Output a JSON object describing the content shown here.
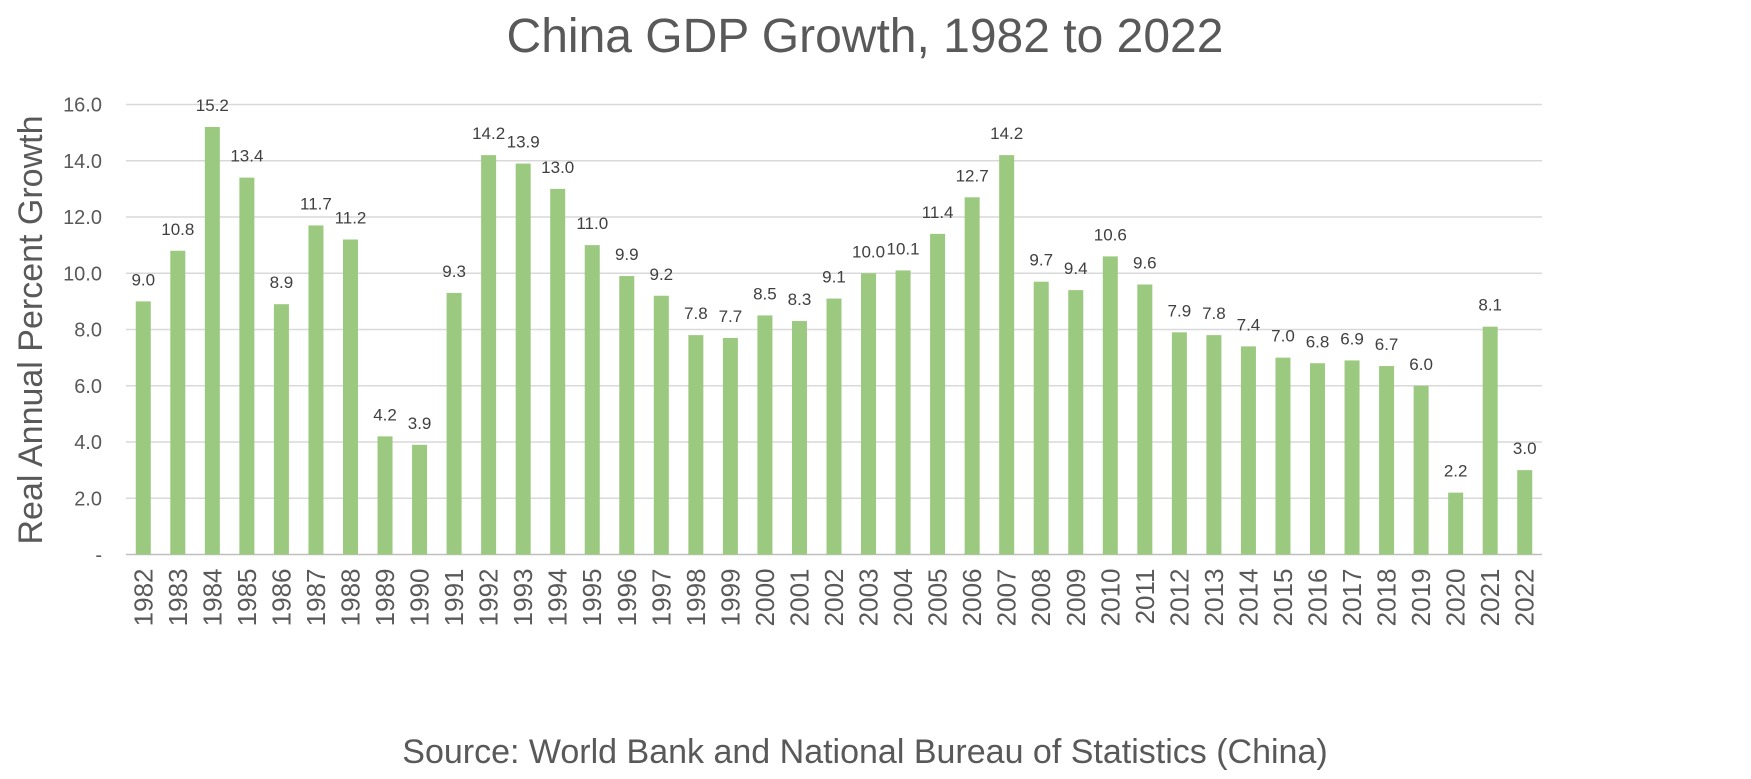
{
  "chart_data": {
    "type": "bar",
    "title": "China GDP Growth, 1982 to 2022",
    "xlabel": "Source: World Bank and National Bureau of Statistics (China)",
    "ylabel": "Real Annual Percent Growth",
    "ylim": [
      0,
      16
    ],
    "yticks": [
      "-",
      "2.0",
      "4.0",
      "6.0",
      "8.0",
      "10.0",
      "12.0",
      "14.0",
      "16.0"
    ],
    "grid": true,
    "bar_color": "#9bc97f",
    "categories": [
      "1982",
      "1983",
      "1984",
      "1985",
      "1986",
      "1987",
      "1988",
      "1989",
      "1990",
      "1991",
      "1992",
      "1993",
      "1994",
      "1995",
      "1996",
      "1997",
      "1998",
      "1999",
      "2000",
      "2001",
      "2002",
      "2003",
      "2004",
      "2005",
      "2006",
      "2007",
      "2008",
      "2009",
      "2010",
      "2011",
      "2012",
      "2013",
      "2014",
      "2015",
      "2016",
      "2017",
      "2018",
      "2019",
      "2020",
      "2021",
      "2022"
    ],
    "values": [
      9.0,
      10.8,
      15.2,
      13.4,
      8.9,
      11.7,
      11.2,
      4.2,
      3.9,
      9.3,
      14.2,
      13.9,
      13.0,
      11.0,
      9.9,
      9.2,
      7.8,
      7.7,
      8.5,
      8.3,
      9.1,
      10.0,
      10.1,
      11.4,
      12.7,
      14.2,
      9.7,
      9.4,
      10.6,
      9.6,
      7.9,
      7.8,
      7.4,
      7.0,
      6.8,
      6.9,
      6.7,
      6.0,
      2.2,
      8.1,
      3.0
    ]
  }
}
